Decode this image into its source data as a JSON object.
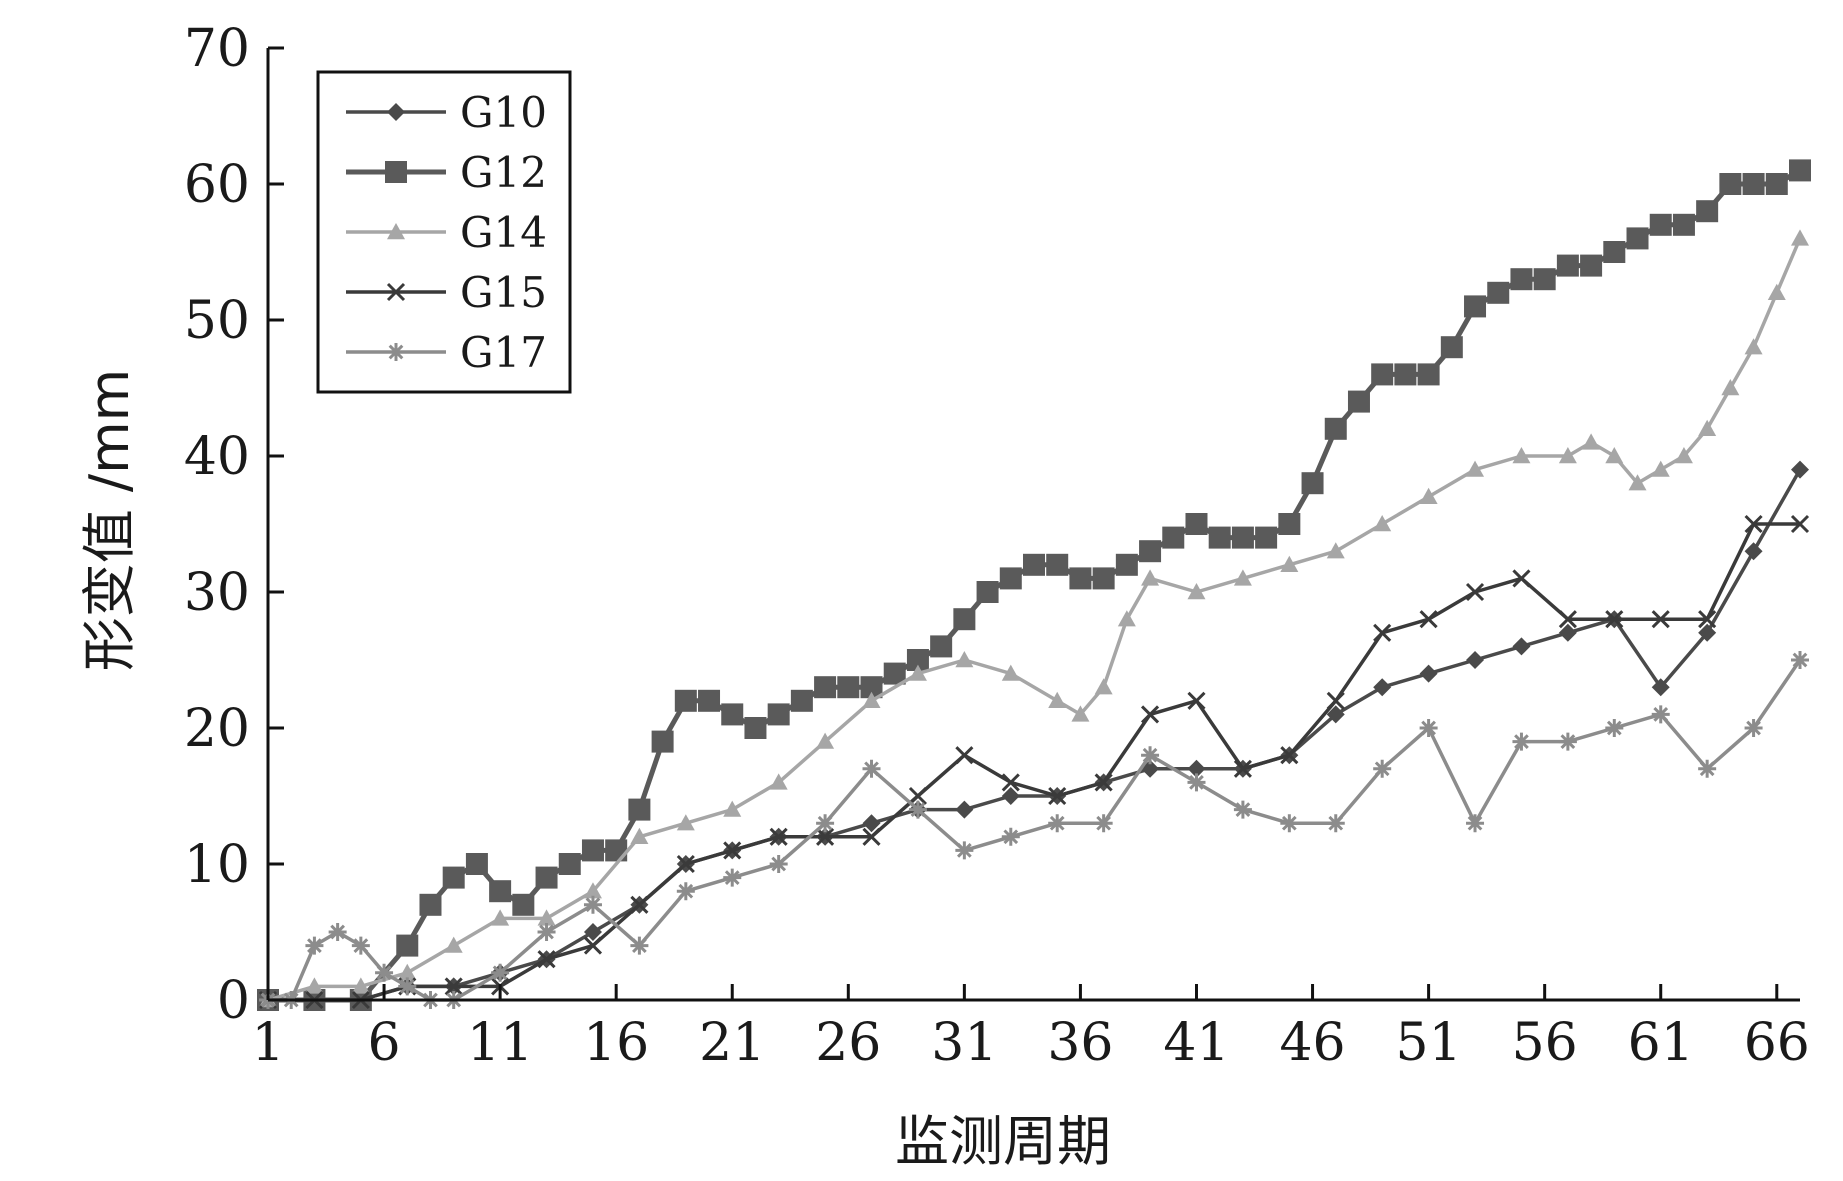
{
  "chart_data": {
    "type": "line",
    "xlabel": "监测周期",
    "ylabel": "形变值 /mm",
    "xlim": [
      1,
      67
    ],
    "ylim": [
      0,
      70
    ],
    "x_ticks": [
      1,
      6,
      11,
      16,
      21,
      26,
      31,
      36,
      41,
      46,
      51,
      56,
      61,
      66
    ],
    "y_ticks": [
      0,
      10,
      20,
      30,
      40,
      50,
      60,
      70
    ],
    "legend": "top-left",
    "grid": false,
    "series": [
      {
        "name": "G10",
        "color": "#4a4a4a",
        "marker": "diamond",
        "x": [
          1,
          3,
          5,
          7,
          9,
          11,
          13,
          15,
          17,
          19,
          21,
          23,
          25,
          27,
          29,
          31,
          33,
          35,
          37,
          39,
          41,
          43,
          45,
          47,
          49,
          51,
          53,
          55,
          57,
          59,
          61,
          63,
          65,
          67
        ],
        "y": [
          0,
          0,
          0,
          1,
          1,
          2,
          3,
          5,
          7,
          10,
          11,
          12,
          12,
          13,
          14,
          14,
          15,
          15,
          16,
          17,
          17,
          17,
          18,
          21,
          23,
          24,
          25,
          26,
          27,
          28,
          23,
          27,
          33,
          39
        ]
      },
      {
        "name": "G12",
        "color": "#5a5a5a",
        "marker": "square",
        "x": [
          1,
          3,
          5,
          7,
          8,
          9,
          10,
          11,
          12,
          13,
          14,
          15,
          16,
          17,
          18,
          19,
          20,
          21,
          22,
          23,
          24,
          25,
          26,
          27,
          28,
          29,
          30,
          31,
          32,
          33,
          34,
          35,
          36,
          37,
          38,
          39,
          40,
          41,
          42,
          43,
          44,
          45,
          46,
          47,
          48,
          49,
          50,
          51,
          52,
          53,
          54,
          55,
          56,
          57,
          58,
          59,
          60,
          61,
          62,
          63,
          64,
          65,
          66,
          67
        ],
        "y": [
          0,
          0,
          0,
          4,
          7,
          9,
          10,
          8,
          7,
          9,
          10,
          11,
          11,
          14,
          19,
          22,
          22,
          21,
          20,
          21,
          22,
          23,
          23,
          23,
          24,
          25,
          26,
          28,
          30,
          31,
          32,
          32,
          31,
          31,
          32,
          33,
          34,
          35,
          34,
          34,
          34,
          35,
          38,
          42,
          44,
          46,
          46,
          46,
          48,
          51,
          52,
          53,
          53,
          54,
          54,
          55,
          56,
          57,
          57,
          58,
          60,
          60,
          60,
          61
        ]
      },
      {
        "name": "G14",
        "color": "#a6a6a6",
        "marker": "triangle",
        "x": [
          1,
          3,
          5,
          7,
          9,
          11,
          13,
          15,
          17,
          19,
          21,
          23,
          25,
          27,
          29,
          31,
          33,
          35,
          36,
          37,
          38,
          39,
          41,
          43,
          45,
          47,
          49,
          51,
          53,
          55,
          57,
          58,
          59,
          60,
          61,
          62,
          63,
          64,
          65,
          66,
          67
        ],
        "y": [
          0,
          1,
          1,
          2,
          4,
          6,
          6,
          8,
          12,
          13,
          14,
          16,
          19,
          22,
          24,
          25,
          24,
          22,
          21,
          23,
          28,
          31,
          30,
          31,
          32,
          33,
          35,
          37,
          39,
          40,
          40,
          41,
          40,
          38,
          39,
          40,
          42,
          45,
          48,
          52,
          56
        ]
      },
      {
        "name": "G15",
        "color": "#3a3a3a",
        "marker": "x",
        "x": [
          1,
          3,
          5,
          7,
          9,
          11,
          13,
          15,
          17,
          19,
          21,
          23,
          25,
          27,
          29,
          31,
          33,
          35,
          37,
          39,
          41,
          43,
          45,
          47,
          49,
          51,
          53,
          55,
          57,
          59,
          61,
          63,
          65,
          67
        ],
        "y": [
          0,
          0,
          0,
          1,
          1,
          1,
          3,
          4,
          7,
          10,
          11,
          12,
          12,
          12,
          15,
          18,
          16,
          15,
          16,
          21,
          22,
          17,
          18,
          22,
          27,
          28,
          30,
          31,
          28,
          28,
          28,
          28,
          35,
          35
        ]
      },
      {
        "name": "G17",
        "color": "#8c8c8c",
        "marker": "star",
        "x": [
          1,
          2,
          3,
          4,
          5,
          6,
          7,
          8,
          9,
          11,
          13,
          15,
          17,
          19,
          21,
          23,
          25,
          27,
          29,
          31,
          33,
          35,
          37,
          39,
          41,
          43,
          45,
          47,
          49,
          51,
          53,
          55,
          57,
          59,
          61,
          63,
          65,
          67
        ],
        "y": [
          0,
          0,
          4,
          5,
          4,
          2,
          1,
          0,
          0,
          2,
          5,
          7,
          4,
          8,
          9,
          10,
          13,
          17,
          14,
          11,
          12,
          13,
          13,
          18,
          16,
          14,
          13,
          13,
          17,
          20,
          13,
          19,
          19,
          20,
          21,
          17,
          20,
          25
        ]
      }
    ]
  }
}
